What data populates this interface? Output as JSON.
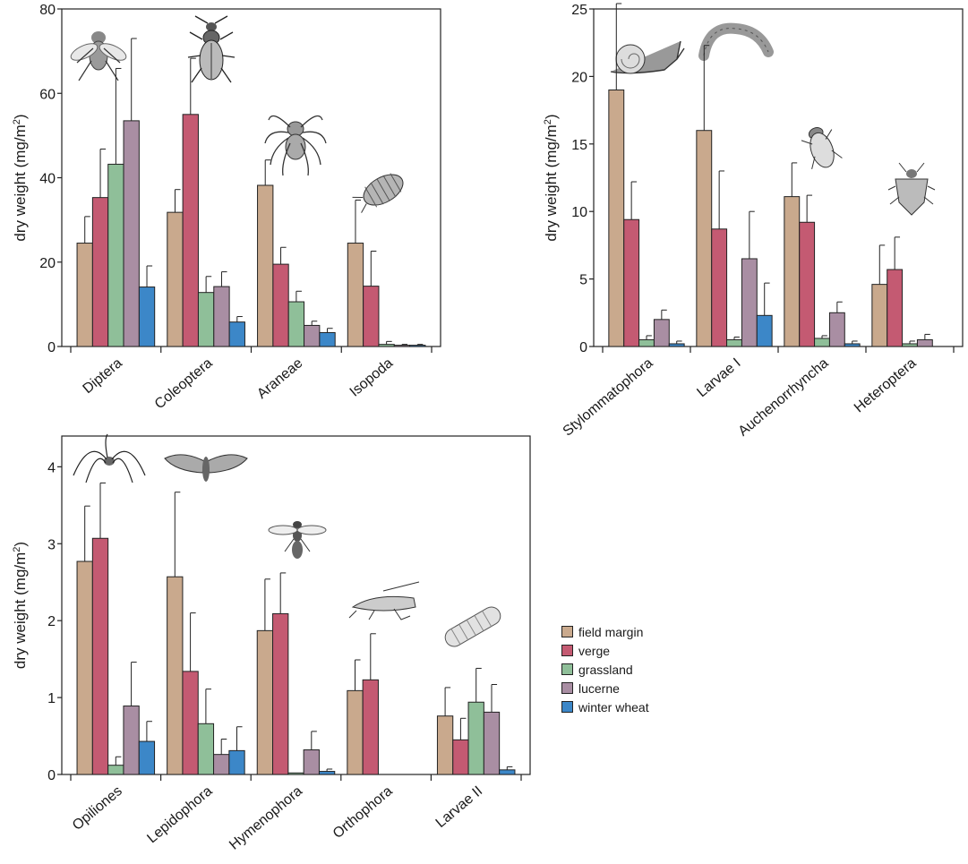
{
  "chart_data": [
    {
      "type": "bar",
      "ylabel": "dry weight (mg/m²)",
      "ylabel_main": "dry weight (mg/m",
      "ylabel_sup": "2",
      "ylabel_end": ")",
      "ylim": [
        0,
        80
      ],
      "yticks": [
        0,
        20,
        40,
        60,
        80
      ],
      "categories": [
        "Diptera",
        "Coleoptera",
        "Araneae",
        "Isopoda"
      ],
      "series": [
        {
          "name": "field margin",
          "values": [
            24.5,
            31.8,
            38.2,
            24.5
          ],
          "errors": [
            6.3,
            5.4,
            6.0,
            10.2
          ]
        },
        {
          "name": "verge",
          "values": [
            35.3,
            55.0,
            19.5,
            14.3
          ],
          "errors": [
            11.5,
            13.3,
            4.0,
            8.3
          ]
        },
        {
          "name": "grassland",
          "values": [
            43.2,
            12.8,
            10.6,
            0.5
          ],
          "errors": [
            22.7,
            3.8,
            2.5,
            0.7
          ]
        },
        {
          "name": "lucerne",
          "values": [
            53.5,
            14.2,
            5.0,
            0.3
          ],
          "errors": [
            19.5,
            3.5,
            1.0,
            0.2
          ]
        },
        {
          "name": "winter wheat",
          "values": [
            14.1,
            5.8,
            3.3,
            0.3
          ],
          "errors": [
            5.0,
            1.3,
            1.0,
            0.2
          ]
        }
      ]
    },
    {
      "type": "bar",
      "ylabel": "dry weight (mg/m²)",
      "ylabel_main": "dry weight (mg/m",
      "ylabel_sup": "2",
      "ylabel_end": ")",
      "ylim": [
        0,
        25
      ],
      "yticks": [
        0,
        5,
        10,
        15,
        20,
        25
      ],
      "categories": [
        "Stylommatophora",
        "Larvae I",
        "Auchenorrhyncha",
        "Heteroptera"
      ],
      "series": [
        {
          "name": "field margin",
          "values": [
            19.0,
            16.0,
            11.1,
            4.6
          ],
          "errors": [
            6.4,
            6.3,
            2.5,
            2.9
          ]
        },
        {
          "name": "verge",
          "values": [
            9.4,
            8.7,
            9.2,
            5.7
          ],
          "errors": [
            2.8,
            4.3,
            2.0,
            2.4
          ]
        },
        {
          "name": "grassland",
          "values": [
            0.5,
            0.5,
            0.6,
            0.2
          ],
          "errors": [
            0.3,
            0.2,
            0.2,
            0.2
          ]
        },
        {
          "name": "lucerne",
          "values": [
            2.0,
            6.5,
            2.5,
            0.5
          ],
          "errors": [
            0.7,
            3.5,
            0.8,
            0.4
          ]
        },
        {
          "name": "winter wheat",
          "values": [
            0.2,
            2.3,
            0.2,
            0.0
          ],
          "errors": [
            0.2,
            2.4,
            0.2,
            0.0
          ]
        }
      ]
    },
    {
      "type": "bar",
      "ylabel": "dry weight (mg/m²)",
      "ylabel_main": "dry weight (mg/m",
      "ylabel_sup": "2",
      "ylabel_end": ")",
      "ylim": [
        0,
        4.4
      ],
      "yticks": [
        0,
        1,
        2,
        3,
        4
      ],
      "categories": [
        "Opiliones",
        "Lepidophora",
        "Hymenophora",
        "Orthophora",
        "Larvae II"
      ],
      "series": [
        {
          "name": "field margin",
          "values": [
            2.77,
            2.57,
            1.87,
            1.09,
            0.76
          ],
          "errors": [
            0.72,
            1.1,
            0.67,
            0.4,
            0.37
          ]
        },
        {
          "name": "verge",
          "values": [
            3.07,
            1.34,
            2.09,
            1.23,
            0.45
          ],
          "errors": [
            0.72,
            0.76,
            0.53,
            0.6,
            0.28
          ]
        },
        {
          "name": "grassland",
          "values": [
            0.12,
            0.66,
            0.02,
            0.0,
            0.94
          ],
          "errors": [
            0.11,
            0.45,
            0.0,
            0.0,
            0.44
          ]
        },
        {
          "name": "lucerne",
          "values": [
            0.89,
            0.26,
            0.32,
            0.0,
            0.81
          ],
          "errors": [
            0.57,
            0.2,
            0.24,
            0.0,
            0.36
          ]
        },
        {
          "name": "winter wheat",
          "values": [
            0.43,
            0.31,
            0.04,
            0.0,
            0.06
          ],
          "errors": [
            0.26,
            0.31,
            0.03,
            0.0,
            0.04
          ]
        }
      ]
    }
  ],
  "colors": {
    "field margin": "#c9a98d",
    "verge": "#c45a72",
    "grassland": "#8fbf99",
    "lucerne": "#a98ea3",
    "winter wheat": "#3c87c8"
  },
  "legend": {
    "placement": "right",
    "items": [
      "field margin",
      "verge",
      "grassland",
      "lucerne",
      "winter wheat"
    ]
  },
  "icons": [
    "fly-icon",
    "beetle-icon",
    "spider-icon",
    "woodlouse-icon",
    "snail-icon",
    "caterpillar-icon",
    "leafhopper-icon",
    "shieldbug-icon",
    "harvestman-icon",
    "moth-icon",
    "wasp-icon",
    "grasshopper-icon",
    "larva-icon"
  ]
}
